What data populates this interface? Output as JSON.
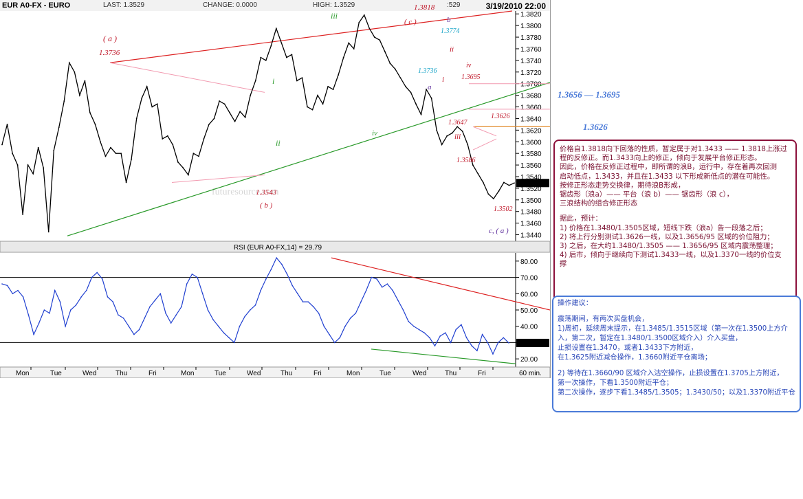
{
  "header": {
    "symbol": "EUR A0-FX - EURO",
    "last": "LAST: 1.3529",
    "change": "CHANGE: 0.0000",
    "high": "HIGH: 1.3529",
    "low": ":529",
    "datetime": "3/19/2010 22:00"
  },
  "chart_data": [
    {
      "type": "line",
      "title": "EUR A0-FX - EURO",
      "ylim": [
        1.343,
        1.3825
      ],
      "y_ticks": [
        "1.3820",
        "1.3800",
        "1.3780",
        "1.3760",
        "1.3740",
        "1.3720",
        "1.3700",
        "1.3680",
        "1.3660",
        "1.3640",
        "1.3620",
        "1.3600",
        "1.3580",
        "1.3560",
        "1.3540",
        "1.3520",
        "1.3500",
        "1.3480",
        "1.3460",
        "1.3440"
      ],
      "x_ticks": [
        "Mon",
        "Tue",
        "Wed",
        "Thu",
        "Fri",
        "Mon",
        "Tue",
        "Wed",
        "Thu",
        "Fri",
        "Mon",
        "Tue",
        "Wed",
        "Thu",
        "Fri",
        "60 min."
      ],
      "last_price_label": "1.3529",
      "series": [
        {
          "values": [
            1.3595,
            1.363,
            1.358,
            1.356,
            1.3475,
            1.356,
            1.3545,
            1.359,
            1.3555,
            1.3445,
            1.3585,
            1.3625,
            1.367,
            1.3736,
            1.372,
            1.368,
            1.3705,
            1.365,
            1.363,
            1.36,
            1.3575,
            1.359,
            1.358,
            1.358,
            1.353,
            1.357,
            1.364,
            1.3675,
            1.3695,
            1.366,
            1.3665,
            1.3605,
            1.361,
            1.3595,
            1.3565,
            1.3555,
            1.3543,
            1.358,
            1.3575,
            1.3605,
            1.363,
            1.364,
            1.367,
            1.3665,
            1.365,
            1.3635,
            1.3652,
            1.3642,
            1.368,
            1.3705,
            1.3745,
            1.374,
            1.3765,
            1.3795,
            1.377,
            1.3745,
            1.375,
            1.3705,
            1.371,
            1.366,
            1.3655,
            1.368,
            1.3665,
            1.3695,
            1.369,
            1.3715,
            1.3745,
            1.377,
            1.376,
            1.3805,
            1.3818,
            1.3795,
            1.378,
            1.3775,
            1.3755,
            1.3735,
            1.3725,
            1.371,
            1.3695,
            1.3685,
            1.3665,
            1.3647,
            1.369,
            1.3675,
            1.362,
            1.3595,
            1.361,
            1.3615,
            1.3626,
            1.3618,
            1.3595,
            1.356,
            1.3545,
            1.353,
            1.351,
            1.3502,
            1.3515,
            1.353,
            1.3525,
            1.3529
          ]
        }
      ],
      "annotations": [
        {
          "text": "( a )",
          "color": "#c0182a"
        },
        {
          "text": "1.3736",
          "color": "#c0182a"
        },
        {
          "text": "iii",
          "color": "#2a9a2a"
        },
        {
          "text": "1.3818",
          "color": "#c0182a"
        },
        {
          "text": "( c )",
          "color": "#c0182a"
        },
        {
          "text": "b",
          "color": "#5a2a9a"
        },
        {
          "text": "1.3774",
          "color": "#1fa7c9"
        },
        {
          "text": "ii",
          "color": "#c0182a"
        },
        {
          "text": "iv",
          "color": "#c0182a"
        },
        {
          "text": "1.3695",
          "color": "#c0182a"
        },
        {
          "text": "1.3736",
          "color": "#1fa7c9"
        },
        {
          "text": "a",
          "color": "#5a2a9a"
        },
        {
          "text": "i",
          "color": "#c0182a"
        },
        {
          "text": "i",
          "color": "#2a9a2a"
        },
        {
          "text": "ii",
          "color": "#2a9a2a"
        },
        {
          "text": "iv",
          "color": "#2a9a2a"
        },
        {
          "text": "1.3647",
          "color": "#c0182a"
        },
        {
          "text": "1.3626",
          "color": "#c0182a"
        },
        {
          "text": "iii",
          "color": "#c0182a"
        },
        {
          "text": "1.3586",
          "color": "#c0182a"
        },
        {
          "text": "1.3543",
          "color": "#c0182a"
        },
        {
          "text": "( b )",
          "color": "#c0182a"
        },
        {
          "text": "1.3502",
          "color": "#c0182a"
        },
        {
          "text": "c, ( a )",
          "color": "#5a2a9a"
        }
      ],
      "watermark": "futuresource.com"
    },
    {
      "type": "line",
      "title": "RSI (EUR A0-FX,14) = 29.79",
      "ylim": [
        15,
        85
      ],
      "y_ticks": [
        "80.00",
        "70.00",
        "60.00",
        "50.00",
        "40.00",
        "30.00",
        "20.00"
      ],
      "reference_lines": [
        70,
        30
      ],
      "last_value_label": "29.79",
      "series": [
        {
          "values": [
            66,
            65,
            60,
            62,
            58,
            47,
            35,
            42,
            50,
            48,
            62,
            55,
            40,
            50,
            53,
            58,
            62,
            70,
            73,
            69,
            58,
            55,
            47,
            45,
            40,
            35,
            38,
            45,
            52,
            56,
            60,
            48,
            42,
            47,
            52,
            66,
            72,
            70,
            60,
            50,
            44,
            40,
            36,
            33,
            30,
            40,
            46,
            50,
            53,
            62,
            69,
            75,
            82,
            78,
            72,
            65,
            60,
            55,
            55,
            52,
            48,
            40,
            35,
            30,
            33,
            40,
            45,
            48,
            55,
            62,
            70,
            69,
            64,
            66,
            62,
            56,
            50,
            43,
            40,
            38,
            36,
            33,
            28,
            34,
            36,
            30,
            38,
            41,
            33,
            28,
            25,
            35,
            30,
            23,
            30,
            33,
            29.79
          ]
        }
      ]
    }
  ],
  "side_labels": {
    "range_label": "1.3656 — 1.3695",
    "level_label": "1.3626"
  },
  "analysis_box": {
    "lines": [
      "价格自1.3818向下回落的性质，暂定属于对1.3433 —— 1.3818上涨过",
      "程的反修正。而1.3433向上的修正，倾向于发展平台修正形态。",
      "因此，价格在反修正过程中，即所谓的浪B，运行中，存在着再次回测",
      "启动低点，1.3433，并且在1.3433 以下形成新低点的潜在可能性。",
      "按修正形态走势交换律，期待浪B形成，",
      "锯齿形（浪a）—— 平台（浪 b）—— 锯齿形（浪 c），",
      "三浪结构的组合修正形态",
      "",
      "据此，预计：",
      "1) 价格在1.3480/1.3505区域，短线下跌（浪a）告一段落之后；",
      "2) 将上行分别测试1.3626一线，以及1.3656/95 区域的价位阻力；",
      "3) 之后，在大约1.3480/1.3505 —— 1.3656/95 区域内震荡整理；",
      "4) 后市，倾向于继续向下测试1.3433一线，以及1.3370一线的价位支",
      "撑"
    ]
  },
  "advice_box": {
    "lines": [
      "操作建议：",
      "",
      "震荡期间，有两次买盘机会，",
      "1)周初，延续周末提示，在1.3485/1.3515区域（第一次在1.3500上方介",
      "入，第二次，暂定在1.3480/1.3500区域介入）介入买盘，",
      "止损设置在1.3470，或者1.3433下方附近，",
      "在1.3625附近减仓操作，1.3660附近平仓离场；",
      "",
      "2) 等待在1.3660/90 区域介入沽空操作，止损设置在1.3705上方附近，",
      "第一次操作，下看1.3500附近平仓；",
      "第二次操作，逐步下看1.3485/1.3505；1.3430/50；以及1.3370附近平仓"
    ]
  }
}
